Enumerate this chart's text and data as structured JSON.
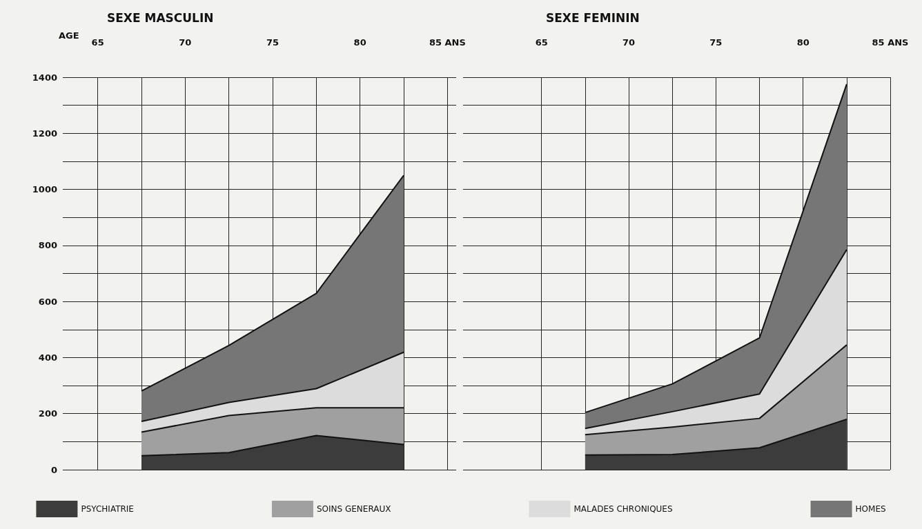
{
  "chart_data": [
    {
      "type": "area",
      "title": "SEXE MASCULIN",
      "xlabel": "AGE",
      "x": [
        67.5,
        72.5,
        77.5,
        82.5
      ],
      "stacked": true,
      "series": [
        {
          "name": "PSYCHIATRIE",
          "color": "#3c3c3c",
          "values": [
            50,
            61,
            122,
            90
          ]
        },
        {
          "name": "SOINS GENERAUX",
          "color": "#a0a0a0",
          "values": [
            84,
            132,
            99,
            131
          ]
        },
        {
          "name": "MALADES CHRONIQUES",
          "color": "#dcdcdc",
          "values": [
            38,
            47,
            68,
            198
          ]
        },
        {
          "name": "HOMES",
          "color": "#767676",
          "values": [
            109,
            203,
            340,
            631
          ]
        }
      ],
      "xlim": [
        63,
        85.5
      ],
      "xticks": [
        65,
        {
          "value": 67.5,
          "label": null
        },
        70,
        {
          "value": 72.5,
          "label": null
        },
        75,
        {
          "value": 77.5,
          "label": null
        },
        80,
        {
          "value": 82.5,
          "label": null
        },
        {
          "value": 85,
          "label": "85 ANS"
        }
      ],
      "ylim": [
        0,
        1400
      ],
      "yticks": [
        0,
        {
          "value": 100,
          "label": null
        },
        200,
        {
          "value": 300,
          "label": null
        },
        400,
        {
          "value": 500,
          "label": null
        },
        600,
        {
          "value": 700,
          "label": null
        },
        800,
        {
          "value": 900,
          "label": null
        },
        1000,
        {
          "value": 1100,
          "label": null
        },
        1200,
        {
          "value": 1300,
          "label": null
        },
        1400
      ],
      "grid": true,
      "legend": "bottom"
    },
    {
      "type": "area",
      "title": "SEXE FEMININ",
      "x": [
        67.5,
        72.5,
        77.5,
        82.5
      ],
      "stacked": true,
      "series": [
        {
          "color": "#3c3c3c",
          "values": [
            52,
            54,
            78,
            180
          ]
        },
        {
          "color": "#a0a0a0",
          "values": [
            73,
            98,
            105,
            265
          ]
        },
        {
          "color": "#dcdcdc",
          "values": [
            22,
            55,
            87,
            340
          ]
        },
        {
          "color": "#767676",
          "values": [
            57,
            99,
            200,
            590
          ]
        }
      ],
      "xlim": [
        60.5,
        85
      ],
      "xticks": [
        65,
        {
          "value": 67.5,
          "label": null
        },
        70,
        {
          "value": 72.5,
          "label": null
        },
        75,
        {
          "value": 77.5,
          "label": null
        },
        80,
        {
          "value": 82.5,
          "label": null
        },
        {
          "value": 85,
          "label": "85 ANS"
        }
      ],
      "ylim": [
        0,
        1400
      ],
      "yticks": [
        0,
        {
          "value": 100,
          "label": null
        },
        200,
        {
          "value": 300,
          "label": null
        },
        400,
        {
          "value": 500,
          "label": null
        },
        600,
        {
          "value": 700,
          "label": null
        },
        800,
        {
          "value": 900,
          "label": null
        },
        1000,
        {
          "value": 1100,
          "label": null
        },
        1200,
        {
          "value": 1300,
          "label": null
        },
        1400
      ],
      "grid": true,
      "tick_labels": "x"
    }
  ]
}
